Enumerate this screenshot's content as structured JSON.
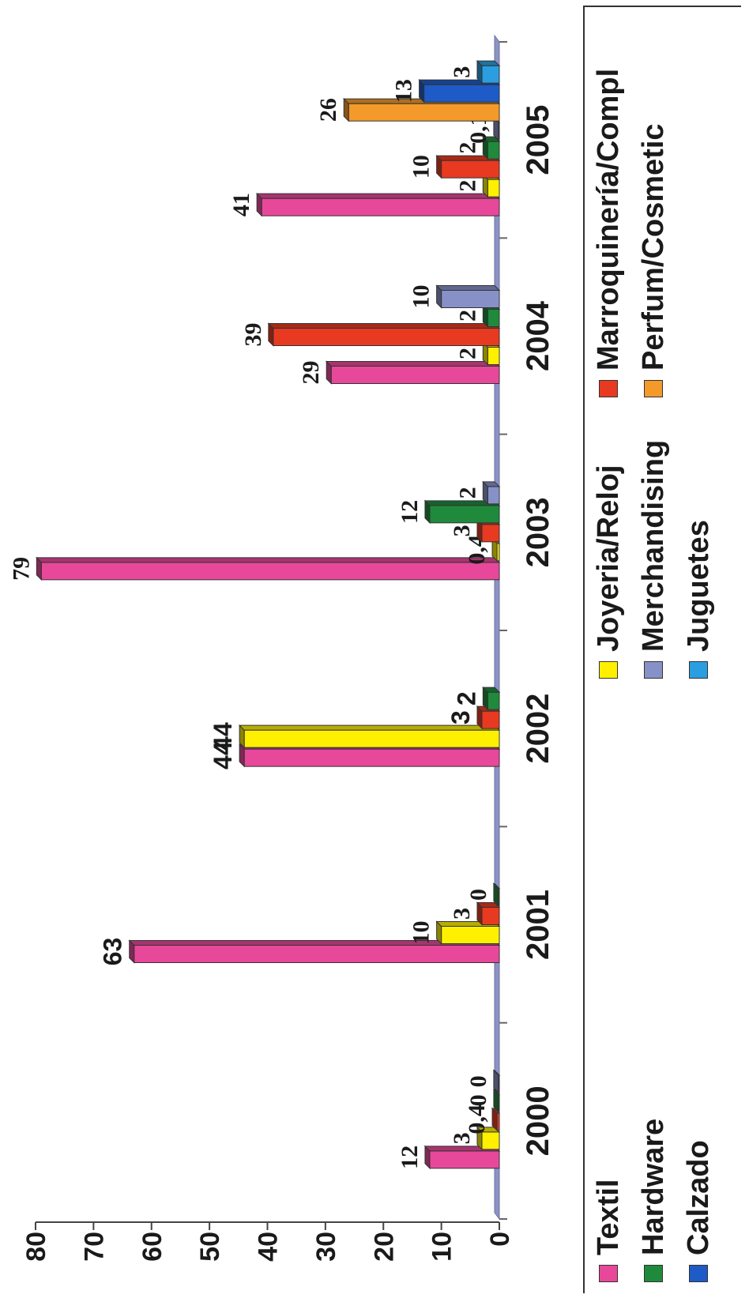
{
  "chart_data": {
    "type": "bar",
    "categories": [
      "2000",
      "2001",
      "2002",
      "2003",
      "2004",
      "2005"
    ],
    "ylim": [
      0,
      80
    ],
    "yticks": [
      "0",
      "10",
      "20",
      "30",
      "40",
      "50",
      "60",
      "70",
      "80"
    ],
    "series": [
      {
        "name": "Textil",
        "color": "#e8489a",
        "values": [
          12,
          63,
          44,
          79,
          29,
          41
        ],
        "labels": [
          "12",
          "63",
          "44",
          "79",
          "29",
          "41"
        ]
      },
      {
        "name": "Joyeria/Reloj",
        "color": "#fff000",
        "values": [
          3,
          10,
          44,
          0.4,
          2,
          2
        ],
        "labels": [
          "3",
          "10",
          "44",
          "0,4",
          "2",
          "2"
        ]
      },
      {
        "name": "Marroquinería/Compl",
        "color": "#e83a20",
        "values": [
          0.4,
          3,
          3,
          3,
          39,
          10
        ],
        "labels": [
          "0,4",
          "3",
          "3",
          "3",
          "39",
          "10"
        ]
      },
      {
        "name": "Hardware",
        "color": "#1f8a3c",
        "values": [
          0,
          0,
          2,
          12,
          2,
          2
        ],
        "labels": [
          "0",
          "0",
          "2",
          "12",
          "2",
          "2"
        ]
      },
      {
        "name": "Merchandising",
        "color": "#8791c8",
        "values": [
          0,
          null,
          null,
          2,
          10,
          0.1
        ],
        "labels": [
          "0",
          "",
          "",
          "2",
          "10",
          "0,1"
        ]
      },
      {
        "name": "Perfum/Cosmetic",
        "color": "#f39a2a",
        "values": [
          null,
          null,
          null,
          null,
          null,
          26
        ],
        "labels": [
          "",
          "",
          "",
          "",
          "",
          "26"
        ]
      },
      {
        "name": "Calzado",
        "color": "#1e5bc6",
        "values": [
          null,
          null,
          null,
          null,
          null,
          13
        ],
        "labels": [
          "",
          "",
          "",
          "",
          "",
          "13"
        ]
      },
      {
        "name": "Juguetes",
        "color": "#2a9ee0",
        "values": [
          null,
          null,
          null,
          null,
          null,
          3
        ],
        "labels": [
          "",
          "",
          "",
          "",
          "",
          "3"
        ]
      }
    ],
    "legend_position": "bottom",
    "grid": false
  }
}
